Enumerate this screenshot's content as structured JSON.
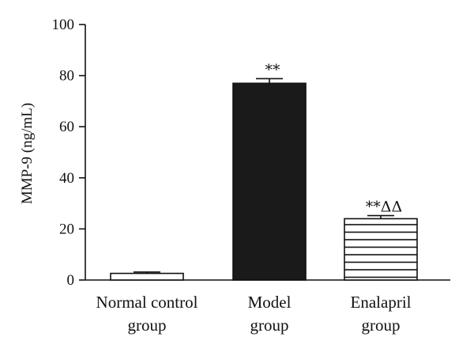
{
  "chart_data": {
    "type": "bar",
    "ylabel": "MMP-9 (ng/mL)",
    "ylim": [
      0,
      100
    ],
    "yticks": [
      0,
      20,
      40,
      60,
      80,
      100
    ],
    "categories": [
      [
        "Normal control",
        "group"
      ],
      [
        "Model",
        "group"
      ],
      [
        "Enalapril",
        "group"
      ]
    ],
    "values": [
      2.6,
      77.0,
      24.0
    ],
    "errors": [
      0.5,
      1.8,
      1.2
    ],
    "annotations": [
      "",
      "**",
      "**ΔΔ"
    ],
    "fills": [
      "open",
      "solid",
      "horizontal-lines"
    ],
    "colors": {
      "solid": "#1a1a1a",
      "stroke": "#111111",
      "background": "#ffffff"
    }
  }
}
